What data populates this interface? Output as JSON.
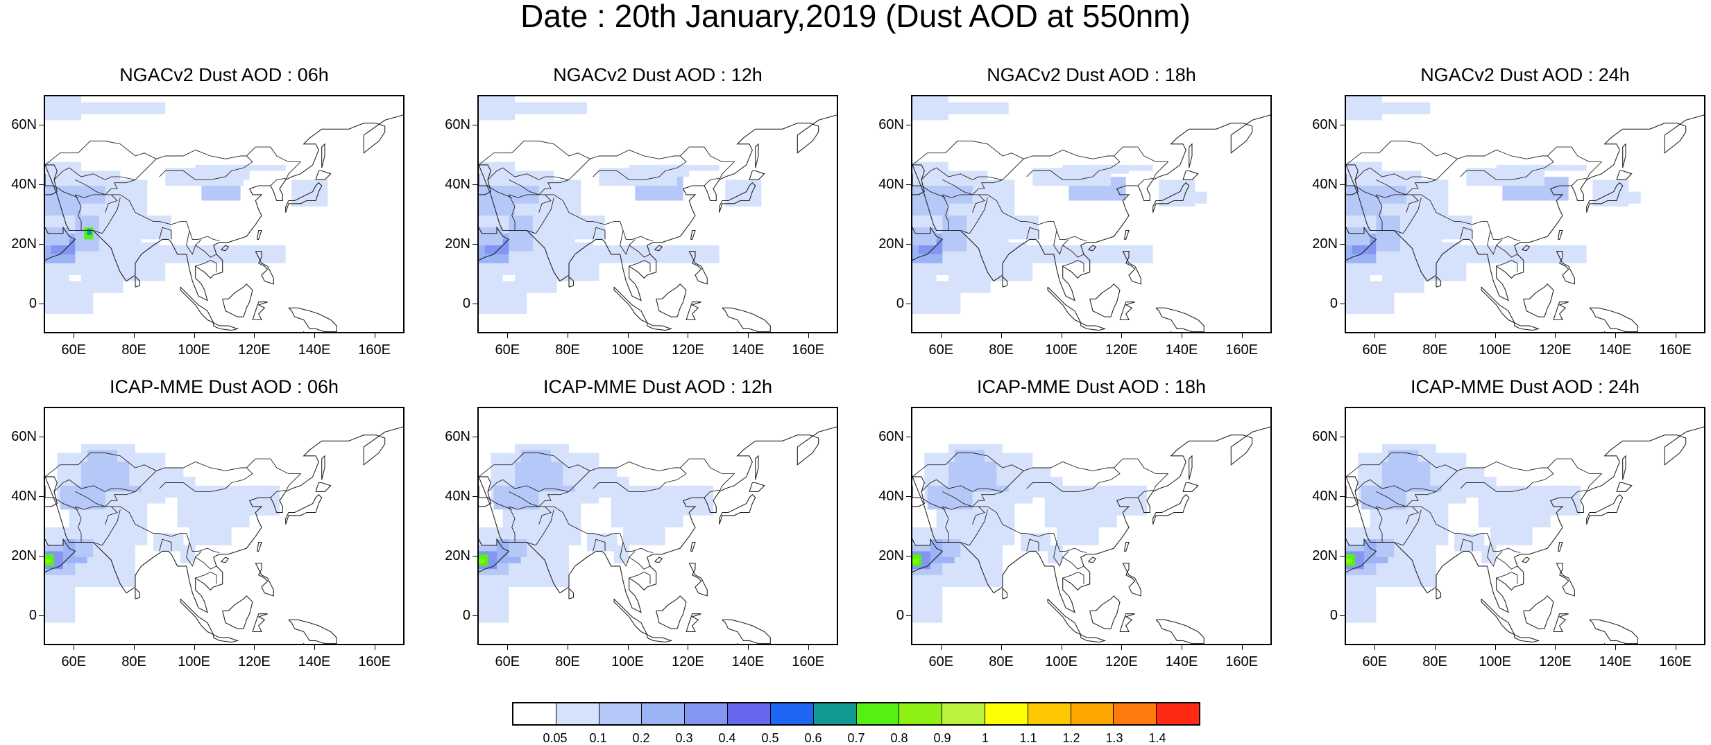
{
  "main_title": "Date : 20th January,2019 (Dust AOD at 550nm)",
  "lat_ticks": [
    "60N",
    "40N",
    "20N",
    "0"
  ],
  "lon_ticks": [
    "60E",
    "80E",
    "100E",
    "120E",
    "140E",
    "160E"
  ],
  "panels": [
    {
      "title": "NGACv2 Dust AOD : 06h",
      "model": "NGAC",
      "hour": 6
    },
    {
      "title": "NGACv2 Dust AOD : 12h",
      "model": "NGAC",
      "hour": 12
    },
    {
      "title": "NGACv2 Dust AOD : 18h",
      "model": "NGAC",
      "hour": 18
    },
    {
      "title": "NGACv2 Dust AOD : 24h",
      "model": "NGAC",
      "hour": 24
    },
    {
      "title": "ICAP-MME Dust AOD : 06h",
      "model": "ICAP",
      "hour": 6
    },
    {
      "title": "ICAP-MME Dust AOD : 12h",
      "model": "ICAP",
      "hour": 12
    },
    {
      "title": "ICAP-MME Dust AOD : 18h",
      "model": "ICAP",
      "hour": 18
    },
    {
      "title": "ICAP-MME Dust AOD : 24h",
      "model": "ICAP",
      "hour": 24
    }
  ],
  "colorbar": {
    "labels": [
      "0.05",
      "0.1",
      "0.2",
      "0.3",
      "0.4",
      "0.5",
      "0.6",
      "0.7",
      "0.8",
      "0.9",
      "1",
      "1.1",
      "1.2",
      "1.3",
      "1.4"
    ],
    "colors": [
      "#ffffff",
      "#d6e2fb",
      "#b6c8f8",
      "#9bb4f5",
      "#8296f2",
      "#6768ed",
      "#1f66f4",
      "#129b95",
      "#55f014",
      "#8ef014",
      "#bdf241",
      "#fefe02",
      "#ffc800",
      "#ffa500",
      "#ff7b0d",
      "#ff2a14"
    ]
  },
  "map_extent": {
    "lon_min": 50,
    "lon_max": 170,
    "lat_min": -10,
    "lat_max": 70
  }
}
